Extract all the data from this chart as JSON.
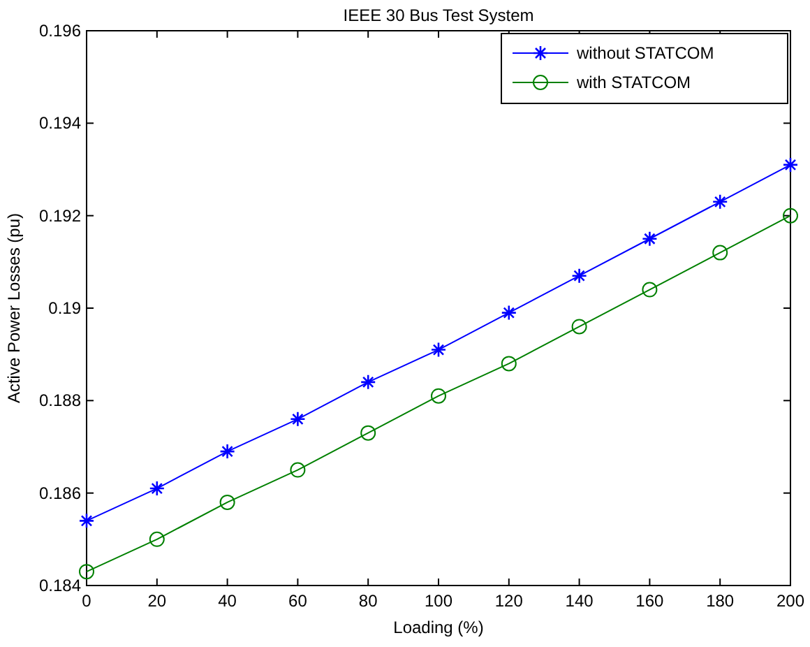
{
  "chart_data": {
    "type": "line",
    "title": "IEEE 30 Bus Test System",
    "xlabel": "Loading (%)",
    "ylabel": "Active Power Losses (pu)",
    "x": [
      0,
      20,
      40,
      60,
      80,
      100,
      120,
      140,
      160,
      180,
      200
    ],
    "series": [
      {
        "name": "without STATCOM",
        "color": "#0000ff",
        "marker": "cross",
        "values": [
          0.1854,
          0.1861,
          0.1869,
          0.1876,
          0.1884,
          0.1891,
          0.1899,
          0.1907,
          0.1915,
          0.1923,
          0.1931
        ]
      },
      {
        "name": "with STATCOM",
        "color": "#008000",
        "marker": "circle",
        "values": [
          0.1843,
          0.185,
          0.1858,
          0.1865,
          0.1873,
          0.1881,
          0.1888,
          0.1896,
          0.1904,
          0.1912,
          0.192
        ]
      }
    ],
    "xlim": [
      0,
      200
    ],
    "xticks": [
      0,
      20,
      40,
      60,
      80,
      100,
      120,
      140,
      160,
      180,
      200
    ],
    "ylim": [
      0.184,
      0.196
    ],
    "yticks": [
      0.184,
      0.186,
      0.188,
      0.19,
      0.192,
      0.194,
      0.196
    ],
    "grid": false,
    "legend": "top right",
    "line_style": "solid"
  }
}
